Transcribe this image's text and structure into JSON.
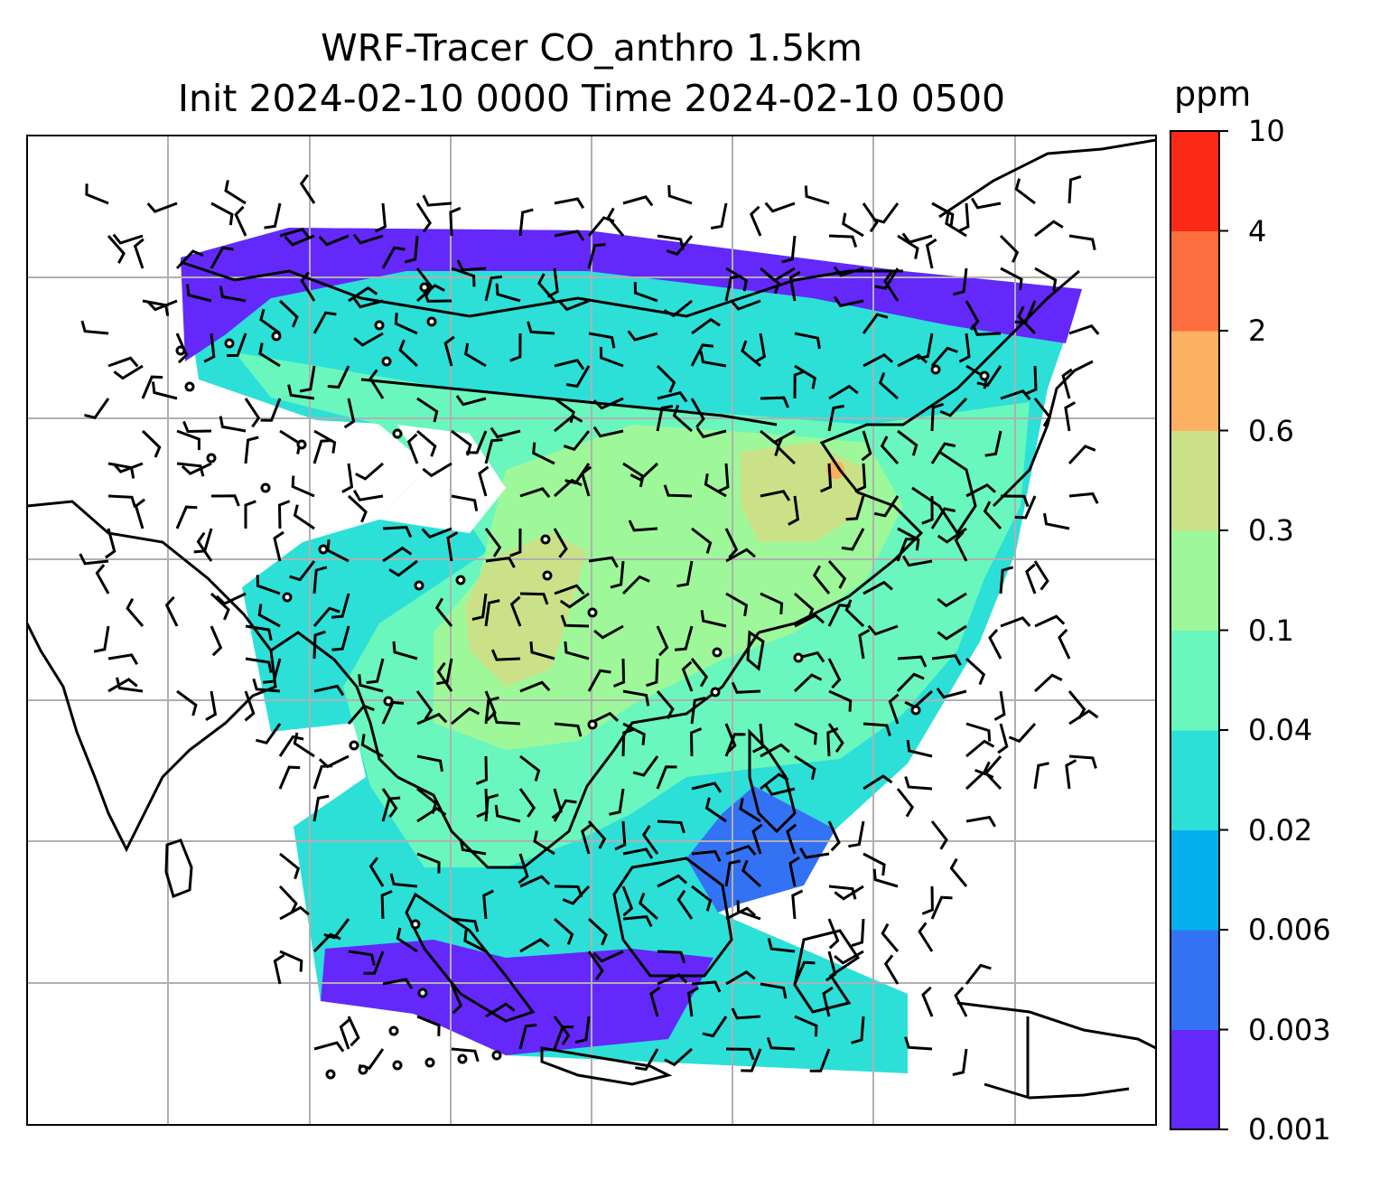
{
  "title": {
    "line1": "WRF-Tracer CO_anthro 1.5km",
    "line2": "Init 2024-02-10 0000 Time 2024-02-10 0500"
  },
  "colorbar": {
    "unit": "ppm",
    "tick_labels": [
      "0.001",
      "0.003",
      "0.006",
      "0.02",
      "0.04",
      "0.1",
      "0.3",
      "0.6",
      "2",
      "4",
      "10"
    ],
    "colors": [
      "#6428fa",
      "#3472f5",
      "#05b0ee",
      "#2ce0d8",
      "#6af7bd",
      "#9ef89a",
      "#cbe188",
      "#fcb061",
      "#fc6e3d",
      "#fa2a16"
    ]
  },
  "map": {
    "field": "CO_anthro",
    "height": "1.5km",
    "overlay": "wind barbs",
    "graticule": true,
    "coastlines": true,
    "colors": {
      "background": "#ffffff",
      "coastline": "#000000",
      "gridline": "#b0b0b0",
      "barb": "#000000"
    }
  }
}
